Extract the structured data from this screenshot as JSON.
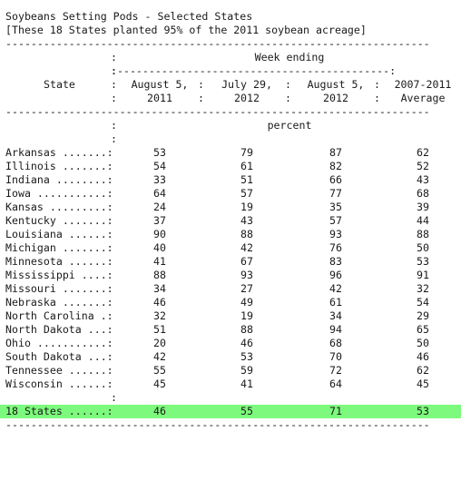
{
  "title": "Soybeans Setting Pods - Selected States",
  "subtitle": "[These 18 States planted 95% of the 2011 soybean acreage]",
  "rule": "-------------------------------------------------------------------",
  "header": {
    "group_label": "Week ending",
    "group_rule": ":-------------------------------------------:",
    "state_label": "State",
    "columns": [
      {
        "line1": "August 5,",
        "line2": "2011"
      },
      {
        "line1": "July 29,",
        "line2": "2012"
      },
      {
        "line1": "August 5,",
        "line2": "2012"
      },
      {
        "line1": "2007-2011",
        "line2": "Average"
      }
    ],
    "unit": "percent"
  },
  "rows": [
    {
      "state": "Arkansas .......:",
      "v": [
        "53",
        "79",
        "87",
        "62"
      ]
    },
    {
      "state": "Illinois .......:",
      "v": [
        "54",
        "61",
        "82",
        "52"
      ]
    },
    {
      "state": "Indiana ........:",
      "v": [
        "33",
        "51",
        "66",
        "43"
      ]
    },
    {
      "state": "Iowa ...........:",
      "v": [
        "64",
        "57",
        "77",
        "68"
      ]
    },
    {
      "state": "Kansas .........:",
      "v": [
        "24",
        "19",
        "35",
        "39"
      ]
    },
    {
      "state": "Kentucky .......:",
      "v": [
        "37",
        "43",
        "57",
        "44"
      ]
    },
    {
      "state": "Louisiana ......:",
      "v": [
        "90",
        "88",
        "93",
        "88"
      ]
    },
    {
      "state": "Michigan .......:",
      "v": [
        "40",
        "42",
        "76",
        "50"
      ]
    },
    {
      "state": "Minnesota ......:",
      "v": [
        "41",
        "67",
        "83",
        "53"
      ]
    },
    {
      "state": "Mississippi ....:",
      "v": [
        "88",
        "93",
        "96",
        "91"
      ]
    },
    {
      "state": "Missouri .......:",
      "v": [
        "34",
        "27",
        "42",
        "32"
      ]
    },
    {
      "state": "Nebraska .......:",
      "v": [
        "46",
        "49",
        "61",
        "54"
      ]
    },
    {
      "state": "North Carolina .:",
      "v": [
        "32",
        "19",
        "34",
        "29"
      ]
    },
    {
      "state": "North Dakota ...:",
      "v": [
        "51",
        "88",
        "94",
        "65"
      ]
    },
    {
      "state": "Ohio ...........:",
      "v": [
        "20",
        "46",
        "68",
        "50"
      ]
    },
    {
      "state": "South Dakota ...:",
      "v": [
        "42",
        "53",
        "70",
        "46"
      ]
    },
    {
      "state": "Tennessee ......:",
      "v": [
        "55",
        "59",
        "72",
        "62"
      ]
    },
    {
      "state": "Wisconsin ......:",
      "v": [
        "45",
        "41",
        "64",
        "45"
      ]
    }
  ],
  "total": {
    "state": "18 States ......:",
    "v": [
      "46",
      "55",
      "71",
      "53"
    ]
  },
  "colors": {
    "highlight": "#7dfa7d",
    "text": "#1a1a1a"
  }
}
